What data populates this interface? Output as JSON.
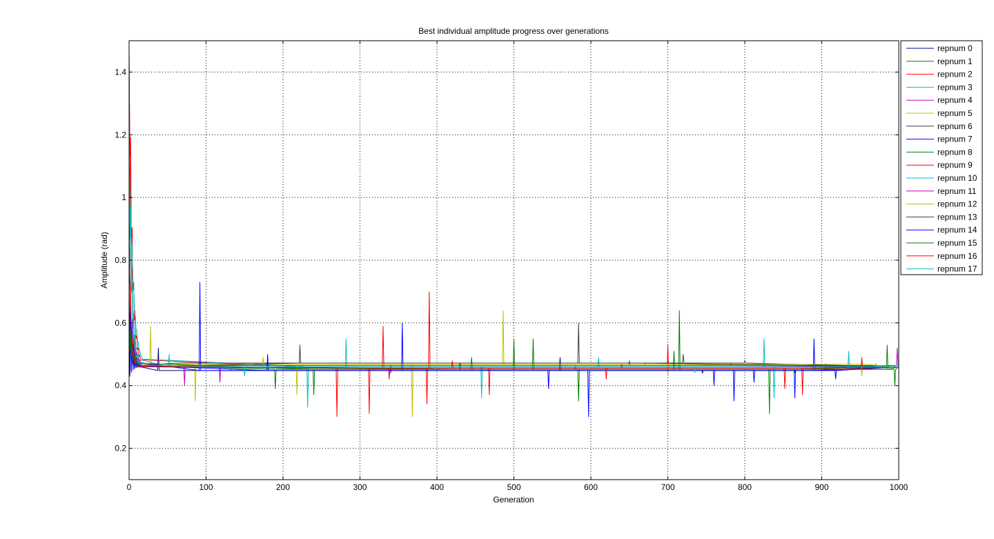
{
  "chart_data": {
    "type": "line",
    "title": "Best individual amplitude progress over generations",
    "xlabel": "Generation",
    "ylabel": "Amplitude (rad)",
    "xlim": [
      0,
      1000
    ],
    "ylim": [
      0.1,
      1.5
    ],
    "xticks": [
      0,
      100,
      200,
      300,
      400,
      500,
      600,
      700,
      800,
      900,
      1000
    ],
    "yticks": [
      0.2,
      0.4,
      0.6,
      0.8,
      1.0,
      1.2,
      1.4
    ],
    "ytick_labels": [
      "0.2",
      "0.4",
      "0.6",
      "0.8",
      "1",
      "1.2",
      "1.4"
    ],
    "grid": true,
    "legend_position": "top-right, outside plot",
    "converged_value": 0.46,
    "series": [
      {
        "name": "repnum 0",
        "color": "#00007f",
        "start": 1.0,
        "spikes": [
          [
            38,
            0.52
          ],
          [
            132,
            0.45
          ],
          [
            560,
            0.49
          ],
          [
            745,
            0.44
          ],
          [
            905,
            0.47
          ]
        ]
      },
      {
        "name": "repnum 1",
        "color": "#007f00",
        "start": 1.3,
        "spikes": [
          [
            12,
            0.67
          ],
          [
            190,
            0.39
          ],
          [
            584,
            0.35
          ],
          [
            715,
            0.64
          ],
          [
            832,
            0.31
          ],
          [
            985,
            0.53
          ]
        ]
      },
      {
        "name": "repnum 2",
        "color": "#ff0000",
        "start": 1.49,
        "spikes": [
          [
            270,
            0.3
          ],
          [
            312,
            0.31
          ],
          [
            330,
            0.59
          ],
          [
            390,
            0.7
          ],
          [
            387,
            0.34
          ],
          [
            468,
            0.37
          ],
          [
            700,
            0.53
          ],
          [
            875,
            0.37
          ]
        ]
      },
      {
        "name": "repnum 3",
        "color": "#00bfbf",
        "start": 1.26,
        "spikes": [
          [
            232,
            0.33
          ],
          [
            282,
            0.55
          ],
          [
            458,
            0.36
          ],
          [
            610,
            0.49
          ],
          [
            825,
            0.55
          ]
        ]
      },
      {
        "name": "repnum 4",
        "color": "#bf00bf",
        "start": 0.9,
        "spikes": [
          [
            118,
            0.41
          ],
          [
            340,
            0.44
          ],
          [
            650,
            0.48
          ],
          [
            998,
            0.52
          ]
        ]
      },
      {
        "name": "repnum 5",
        "color": "#bfbf00",
        "start": 0.8,
        "spikes": [
          [
            28,
            0.59
          ],
          [
            86,
            0.35
          ],
          [
            368,
            0.3
          ],
          [
            486,
            0.64
          ],
          [
            700,
            0.43
          ]
        ]
      },
      {
        "name": "repnum 6",
        "color": "#3f3f3f",
        "start": 0.7,
        "spikes": [
          [
            64,
            0.47
          ],
          [
            584,
            0.6
          ],
          [
            720,
            0.5
          ],
          [
            800,
            0.48
          ]
        ]
      },
      {
        "name": "repnum 7",
        "color": "#0000ff",
        "start": 0.65,
        "spikes": [
          [
            92,
            0.73
          ],
          [
            355,
            0.6
          ],
          [
            597,
            0.3
          ],
          [
            812,
            0.41
          ],
          [
            865,
            0.36
          ],
          [
            890,
            0.55
          ]
        ]
      },
      {
        "name": "repnum 8",
        "color": "#007f00",
        "start": 0.63,
        "spikes": [
          [
            445,
            0.49
          ],
          [
            525,
            0.55
          ],
          [
            580,
            0.46
          ],
          [
            865,
            0.44
          ]
        ]
      },
      {
        "name": "repnum 9",
        "color": "#ff0000",
        "start": 1.45,
        "spikes": [
          [
            338,
            0.42
          ],
          [
            640,
            0.47
          ],
          [
            852,
            0.39
          ]
        ]
      },
      {
        "name": "repnum 10",
        "color": "#00bfbf",
        "start": 1.1,
        "spikes": [
          [
            52,
            0.5
          ],
          [
            515,
            0.46
          ],
          [
            838,
            0.36
          ],
          [
            970,
            0.47
          ]
        ]
      },
      {
        "name": "repnum 11",
        "color": "#bf00bf",
        "start": 0.62,
        "spikes": [
          [
            72,
            0.4
          ],
          [
            165,
            0.47
          ],
          [
            782,
            0.47
          ]
        ]
      },
      {
        "name": "repnum 12",
        "color": "#bfbf00",
        "start": 0.58,
        "spikes": [
          [
            174,
            0.49
          ],
          [
            218,
            0.37
          ],
          [
            952,
            0.43
          ]
        ]
      },
      {
        "name": "repnum 13",
        "color": "#3f3f3f",
        "start": 0.55,
        "spikes": [
          [
            222,
            0.53
          ],
          [
            430,
            0.45
          ],
          [
            670,
            0.47
          ]
        ]
      },
      {
        "name": "repnum 14",
        "color": "#0000ff",
        "start": 0.6,
        "spikes": [
          [
            180,
            0.5
          ],
          [
            545,
            0.39
          ],
          [
            760,
            0.4
          ],
          [
            786,
            0.35
          ],
          [
            918,
            0.42
          ]
        ]
      },
      {
        "name": "repnum 15",
        "color": "#007f00",
        "start": 0.58,
        "spikes": [
          [
            240,
            0.37
          ],
          [
            500,
            0.55
          ],
          [
            708,
            0.51
          ],
          [
            995,
            0.4
          ]
        ]
      },
      {
        "name": "repnum 16",
        "color": "#ff0000",
        "start": 1.02,
        "spikes": [
          [
            318,
            0.45
          ],
          [
            420,
            0.48
          ],
          [
            620,
            0.42
          ],
          [
            952,
            0.49
          ]
        ]
      },
      {
        "name": "repnum 17",
        "color": "#00bfbf",
        "start": 1.28,
        "spikes": [
          [
            150,
            0.43
          ],
          [
            398,
            0.45
          ],
          [
            735,
            0.44
          ],
          [
            935,
            0.51
          ]
        ]
      }
    ]
  }
}
